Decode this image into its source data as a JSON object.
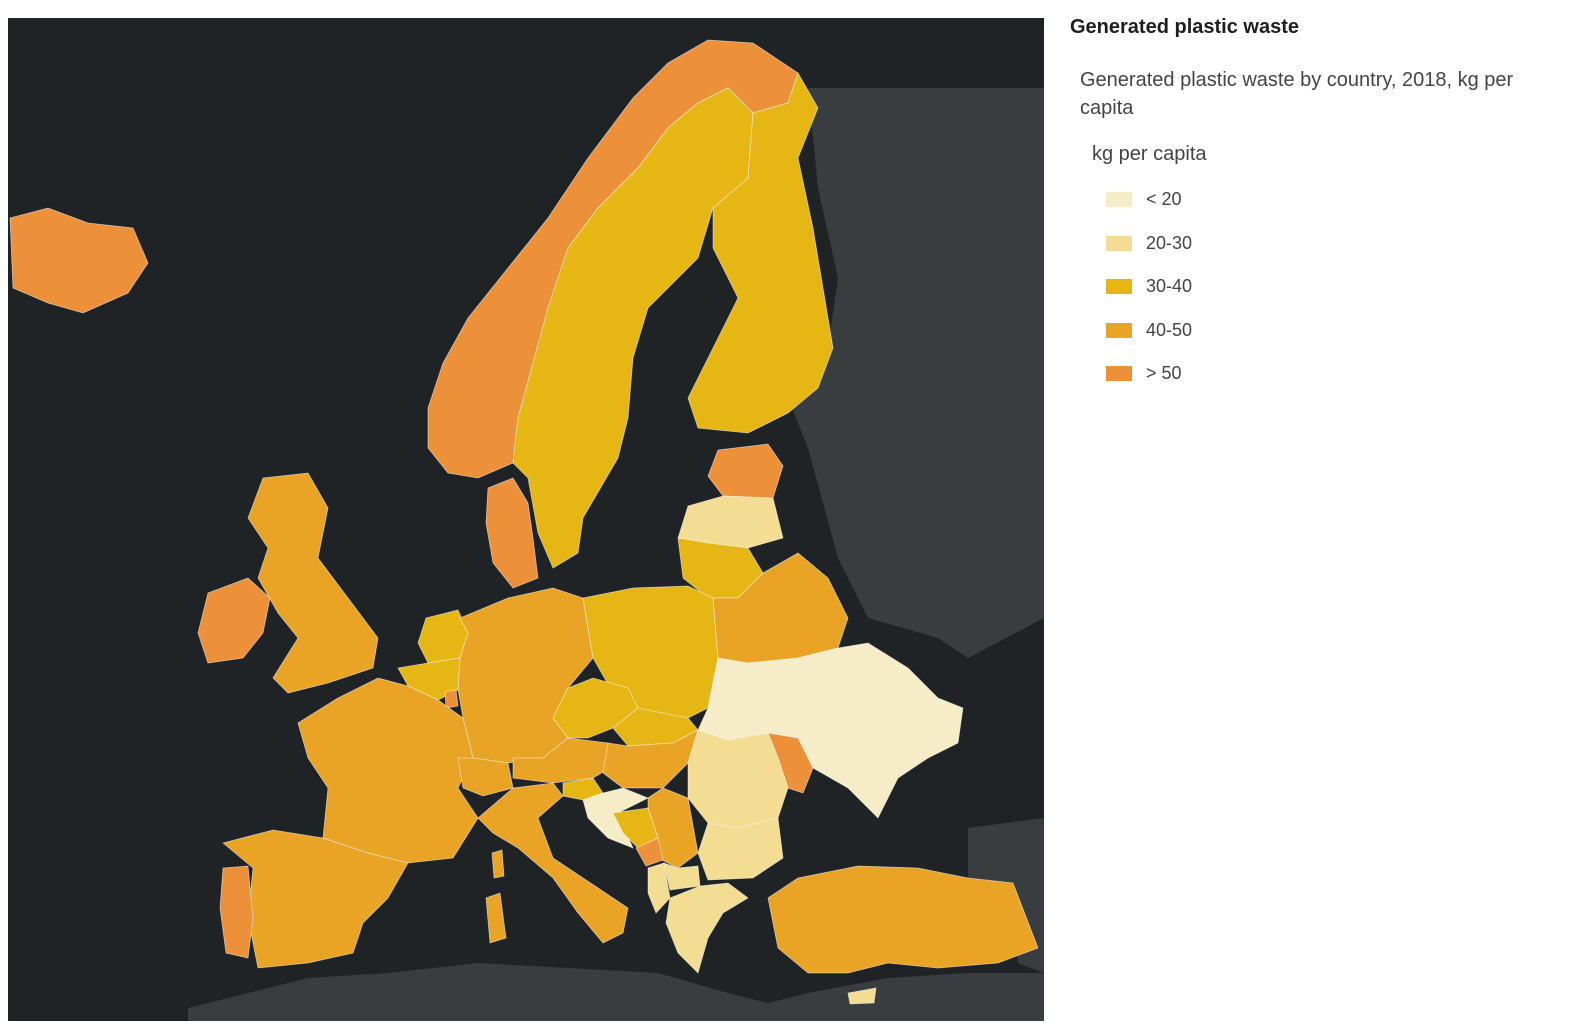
{
  "legend": {
    "title": "Generated plastic waste",
    "subtitle": "Generated plastic waste by country, 2018, kg per capita",
    "field_label": "kg per capita",
    "classes": [
      {
        "label": "< 20",
        "color": "#f6edc8"
      },
      {
        "label": "20-30",
        "color": "#f3dd92"
      },
      {
        "label": "30-40",
        "color": "#e6b714"
      },
      {
        "label": "40-50",
        "color": "#e9a426"
      },
      {
        "label": "> 50",
        "color": "#ec913a"
      }
    ]
  },
  "map": {
    "basemap_colors": {
      "water": "#1f2326",
      "land": "#3a3d40"
    },
    "regions": [
      {
        "name": "iceland",
        "class": 4
      },
      {
        "name": "norway",
        "class": 4
      },
      {
        "name": "sweden",
        "class": 2
      },
      {
        "name": "finland",
        "class": 2
      },
      {
        "name": "estonia",
        "class": 4
      },
      {
        "name": "latvia",
        "class": 1
      },
      {
        "name": "lithuania",
        "class": 2
      },
      {
        "name": "denmark",
        "class": 4
      },
      {
        "name": "ireland",
        "class": 4
      },
      {
        "name": "united-kingdom",
        "class": 3
      },
      {
        "name": "netherlands",
        "class": 2
      },
      {
        "name": "belgium",
        "class": 2
      },
      {
        "name": "luxembourg",
        "class": 4
      },
      {
        "name": "germany",
        "class": 3
      },
      {
        "name": "poland",
        "class": 2
      },
      {
        "name": "belarus",
        "class": 3
      },
      {
        "name": "ukraine",
        "class": 0
      },
      {
        "name": "moldova",
        "class": 4
      },
      {
        "name": "france",
        "class": 3
      },
      {
        "name": "switzerland",
        "class": 3
      },
      {
        "name": "austria",
        "class": 3
      },
      {
        "name": "czechia",
        "class": 2
      },
      {
        "name": "slovakia",
        "class": 2
      },
      {
        "name": "hungary",
        "class": 3
      },
      {
        "name": "romania",
        "class": 1
      },
      {
        "name": "bulgaria",
        "class": 1
      },
      {
        "name": "slovenia",
        "class": 2
      },
      {
        "name": "croatia",
        "class": 0
      },
      {
        "name": "bosnia",
        "class": 2
      },
      {
        "name": "serbia",
        "class": 3
      },
      {
        "name": "montenegro",
        "class": 4
      },
      {
        "name": "albania",
        "class": 1
      },
      {
        "name": "north-macedonia",
        "class": 1
      },
      {
        "name": "greece",
        "class": 1
      },
      {
        "name": "cyprus",
        "class": 1
      },
      {
        "name": "italy",
        "class": 3
      },
      {
        "name": "sardinia",
        "class": 3
      },
      {
        "name": "corsica",
        "class": 3
      },
      {
        "name": "spain",
        "class": 3
      },
      {
        "name": "portugal",
        "class": 4
      },
      {
        "name": "turkey",
        "class": 3
      }
    ]
  }
}
